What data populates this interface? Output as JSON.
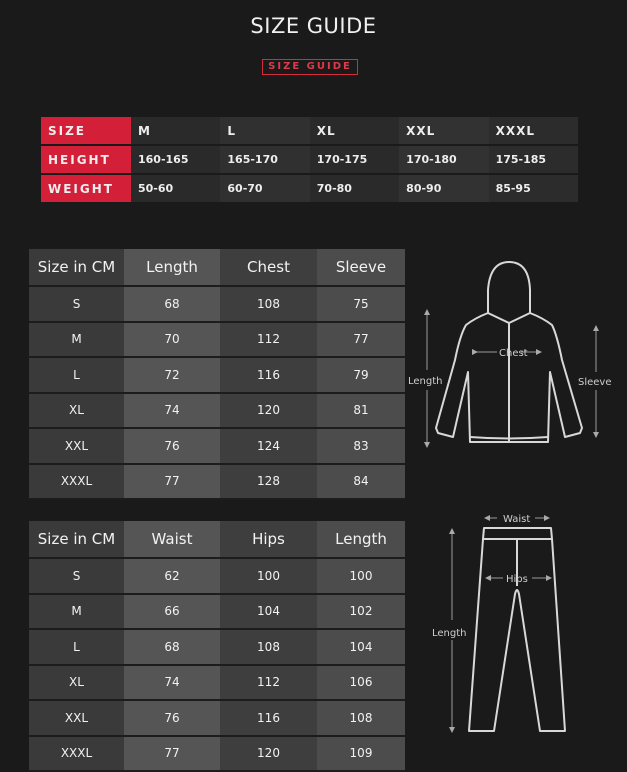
{
  "title": "SIZE GUIDE",
  "badge": "SIZE GUIDE",
  "colors": {
    "accent": "#d41f39",
    "background": "#1a1a1a"
  },
  "size_chart": {
    "rows": [
      {
        "label": "SIZE",
        "values": [
          "M",
          "L",
          "XL",
          "XXL",
          "XXXL"
        ]
      },
      {
        "label": "HEIGHT",
        "values": [
          "160-165",
          "165-170",
          "170-175",
          "170-180",
          "175-185"
        ]
      },
      {
        "label": "WEIGHT",
        "values": [
          "50-60",
          "60-70",
          "70-80",
          "80-90",
          "85-95"
        ]
      }
    ]
  },
  "jacket_table": {
    "headers": [
      "Size in CM",
      "Length",
      "Chest",
      "Sleeve"
    ],
    "rows": [
      [
        "S",
        "68",
        "108",
        "75"
      ],
      [
        "M",
        "70",
        "112",
        "77"
      ],
      [
        "L",
        "72",
        "116",
        "79"
      ],
      [
        "XL",
        "74",
        "120",
        "81"
      ],
      [
        "XXL",
        "76",
        "124",
        "83"
      ],
      [
        "XXXL",
        "77",
        "128",
        "84"
      ]
    ]
  },
  "pants_table": {
    "headers": [
      "Size in CM",
      "Waist",
      "Hips",
      "Length"
    ],
    "rows": [
      [
        "S",
        "62",
        "100",
        "100"
      ],
      [
        "M",
        "66",
        "104",
        "102"
      ],
      [
        "L",
        "68",
        "108",
        "104"
      ],
      [
        "XL",
        "74",
        "112",
        "106"
      ],
      [
        "XXL",
        "76",
        "116",
        "108"
      ],
      [
        "XXXL",
        "77",
        "120",
        "109"
      ]
    ]
  },
  "jacket_diagram": {
    "chest": "Chest",
    "length": "Length",
    "sleeve": "Sleeve"
  },
  "pants_diagram": {
    "waist": "Waist",
    "hips": "Hips",
    "length": "Length"
  }
}
